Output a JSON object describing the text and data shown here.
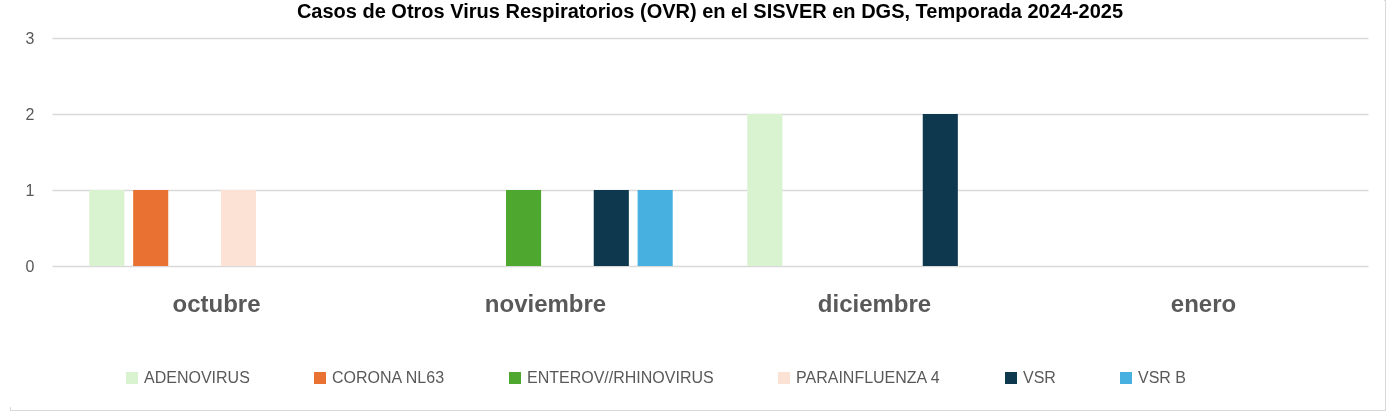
{
  "chart_data": {
    "type": "bar",
    "title": "Casos de Otros Virus Respiratorios (OVR) en el SISVER en DGS, Temporada 2024-2025",
    "categories": [
      "octubre",
      "noviembre",
      "diciembre",
      "enero"
    ],
    "series": [
      {
        "name": "ADENOVIRUS",
        "color": "#d9f2d0",
        "values": [
          1,
          null,
          2,
          null
        ]
      },
      {
        "name": "CORONA NL63",
        "color": "#e97132",
        "values": [
          1,
          null,
          null,
          null
        ]
      },
      {
        "name": "ENTEROV//RHINOVIRUS",
        "color": "#4ea72e",
        "values": [
          null,
          1,
          null,
          null
        ]
      },
      {
        "name": "PARAINFLUENZA 4",
        "color": "#fbe2d5",
        "values": [
          1,
          null,
          null,
          null
        ]
      },
      {
        "name": "VSR",
        "color": "#0e384e",
        "values": [
          null,
          1,
          2,
          null
        ]
      },
      {
        "name": "VSR B",
        "color": "#47b0e0",
        "values": [
          null,
          1,
          null,
          null
        ]
      }
    ],
    "ylim": [
      0,
      3
    ],
    "yticks": [
      0,
      1,
      2,
      3
    ],
    "grid": "y",
    "legend": "bottom"
  }
}
